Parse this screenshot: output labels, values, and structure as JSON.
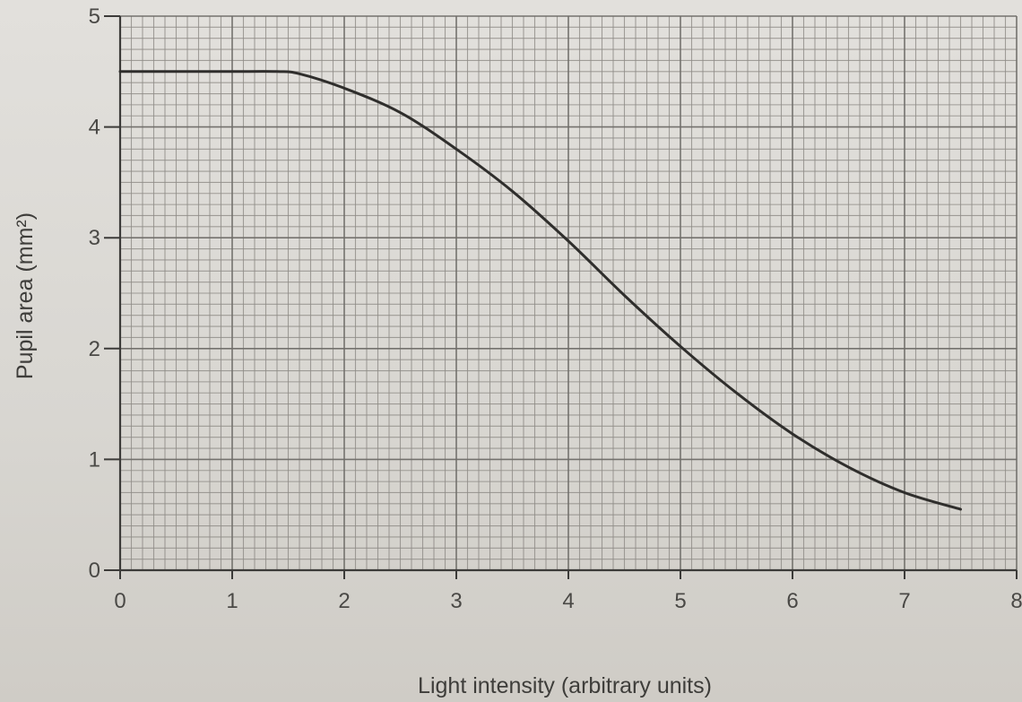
{
  "chart_data": {
    "type": "line",
    "title": "",
    "xlabel": "Light intensity (arbitrary units)",
    "ylabel": "Pupil area (mm²)",
    "xlim": [
      0,
      8
    ],
    "ylim": [
      0,
      5
    ],
    "grid": true,
    "x_ticks": [
      "0",
      "1",
      "2",
      "3",
      "4",
      "5",
      "6",
      "7",
      "8"
    ],
    "y_ticks": [
      "0",
      "1",
      "2",
      "3",
      "4",
      "5"
    ],
    "series": [
      {
        "color": "#2f2e2c",
        "x": [
          0,
          0.5,
          1.0,
          1.4,
          1.6,
          2.0,
          2.5,
          3.0,
          3.5,
          4.0,
          4.5,
          5.0,
          5.5,
          6.0,
          6.5,
          7.0,
          7.5
        ],
        "y": [
          4.5,
          4.5,
          4.5,
          4.5,
          4.48,
          4.35,
          4.13,
          3.8,
          3.42,
          2.97,
          2.48,
          2.02,
          1.6,
          1.23,
          0.93,
          0.7,
          0.55
        ]
      }
    ]
  }
}
